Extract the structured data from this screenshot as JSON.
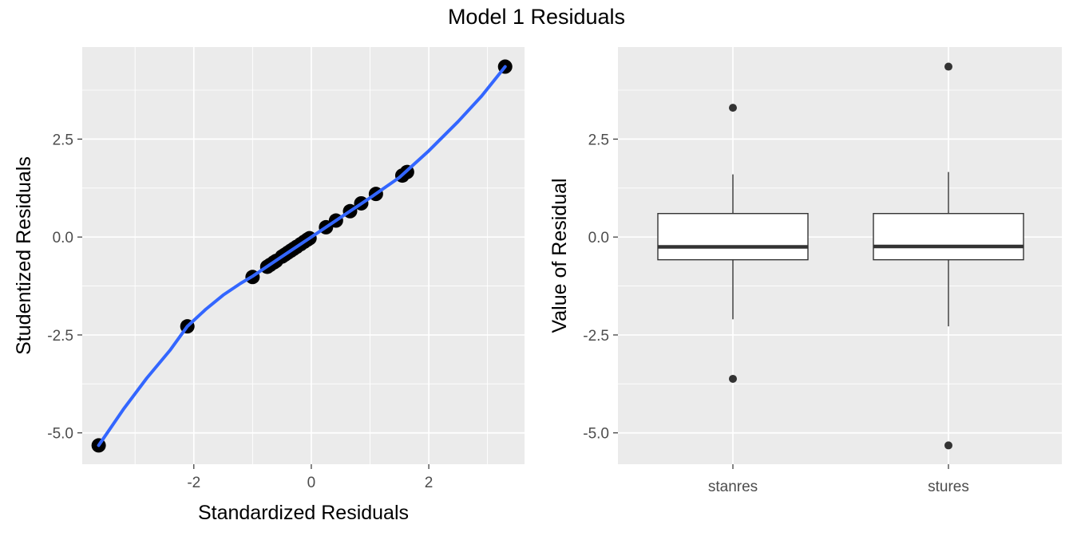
{
  "title": "Model 1 Residuals",
  "chart_data": [
    {
      "type": "scatter",
      "xlabel": "Standardized Residuals",
      "ylabel": "Studentized Residuals",
      "xlim": [
        -3.9,
        3.63
      ],
      "ylim": [
        -5.8,
        4.85
      ],
      "xticks": [
        -2,
        0,
        2
      ],
      "xtick_labels": [
        "-2",
        "0",
        "2"
      ],
      "yticks": [
        -5.0,
        -2.5,
        0.0,
        2.5
      ],
      "ytick_labels": [
        "-5.0",
        "-2.5",
        "0.0",
        "2.5"
      ],
      "grid": true,
      "points": [
        {
          "x": -3.62,
          "y": -5.32
        },
        {
          "x": -2.11,
          "y": -2.28
        },
        {
          "x": -1.0,
          "y": -1.02
        },
        {
          "x": -0.75,
          "y": -0.76
        },
        {
          "x": -0.7,
          "y": -0.71
        },
        {
          "x": -0.64,
          "y": -0.65
        },
        {
          "x": -0.6,
          "y": -0.61
        },
        {
          "x": -0.5,
          "y": -0.5
        },
        {
          "x": -0.45,
          "y": -0.45
        },
        {
          "x": -0.4,
          "y": -0.4
        },
        {
          "x": -0.35,
          "y": -0.35
        },
        {
          "x": -0.3,
          "y": -0.3
        },
        {
          "x": -0.25,
          "y": -0.25
        },
        {
          "x": -0.18,
          "y": -0.18
        },
        {
          "x": -0.12,
          "y": -0.12
        },
        {
          "x": -0.07,
          "y": -0.07
        },
        {
          "x": -0.03,
          "y": -0.03
        },
        {
          "x": 0.25,
          "y": 0.25
        },
        {
          "x": 0.42,
          "y": 0.42
        },
        {
          "x": 0.66,
          "y": 0.66
        },
        {
          "x": 0.85,
          "y": 0.86
        },
        {
          "x": 1.1,
          "y": 1.1
        },
        {
          "x": 1.55,
          "y": 1.57
        },
        {
          "x": 1.63,
          "y": 1.66
        },
        {
          "x": 3.3,
          "y": 4.35
        }
      ],
      "smooth_line": {
        "color": "#3366ff",
        "x": [
          -3.62,
          -3.2,
          -2.8,
          -2.4,
          -2.11,
          -1.8,
          -1.5,
          -1.2,
          -1.0,
          -0.5,
          0.0,
          0.5,
          1.0,
          1.5,
          2.0,
          2.5,
          2.9,
          3.3
        ],
        "y": [
          -5.32,
          -4.4,
          -3.6,
          -2.88,
          -2.28,
          -1.85,
          -1.48,
          -1.18,
          -1.0,
          -0.5,
          0.0,
          0.5,
          1.0,
          1.52,
          2.2,
          2.95,
          3.6,
          4.35
        ]
      },
      "point_color": "#000000"
    },
    {
      "type": "boxplot",
      "xlabel": "",
      "ylabel": "Value of Residual",
      "ylim": [
        -5.8,
        4.85
      ],
      "yticks": [
        -5.0,
        -2.5,
        0.0,
        2.5
      ],
      "ytick_labels": [
        "-5.0",
        "-2.5",
        "0.0",
        "2.5"
      ],
      "grid": true,
      "categories": [
        "stanres",
        "stures"
      ],
      "boxes": [
        {
          "category": "stanres",
          "q1": -0.58,
          "median": -0.25,
          "q3": 0.6,
          "whisker_low": -2.1,
          "whisker_high": 1.6,
          "outliers": [
            3.3,
            -3.62
          ]
        },
        {
          "category": "stures",
          "q1": -0.58,
          "median": -0.24,
          "q3": 0.6,
          "whisker_low": -2.28,
          "whisker_high": 1.66,
          "outliers": [
            4.35,
            -5.32
          ]
        }
      ]
    }
  ]
}
